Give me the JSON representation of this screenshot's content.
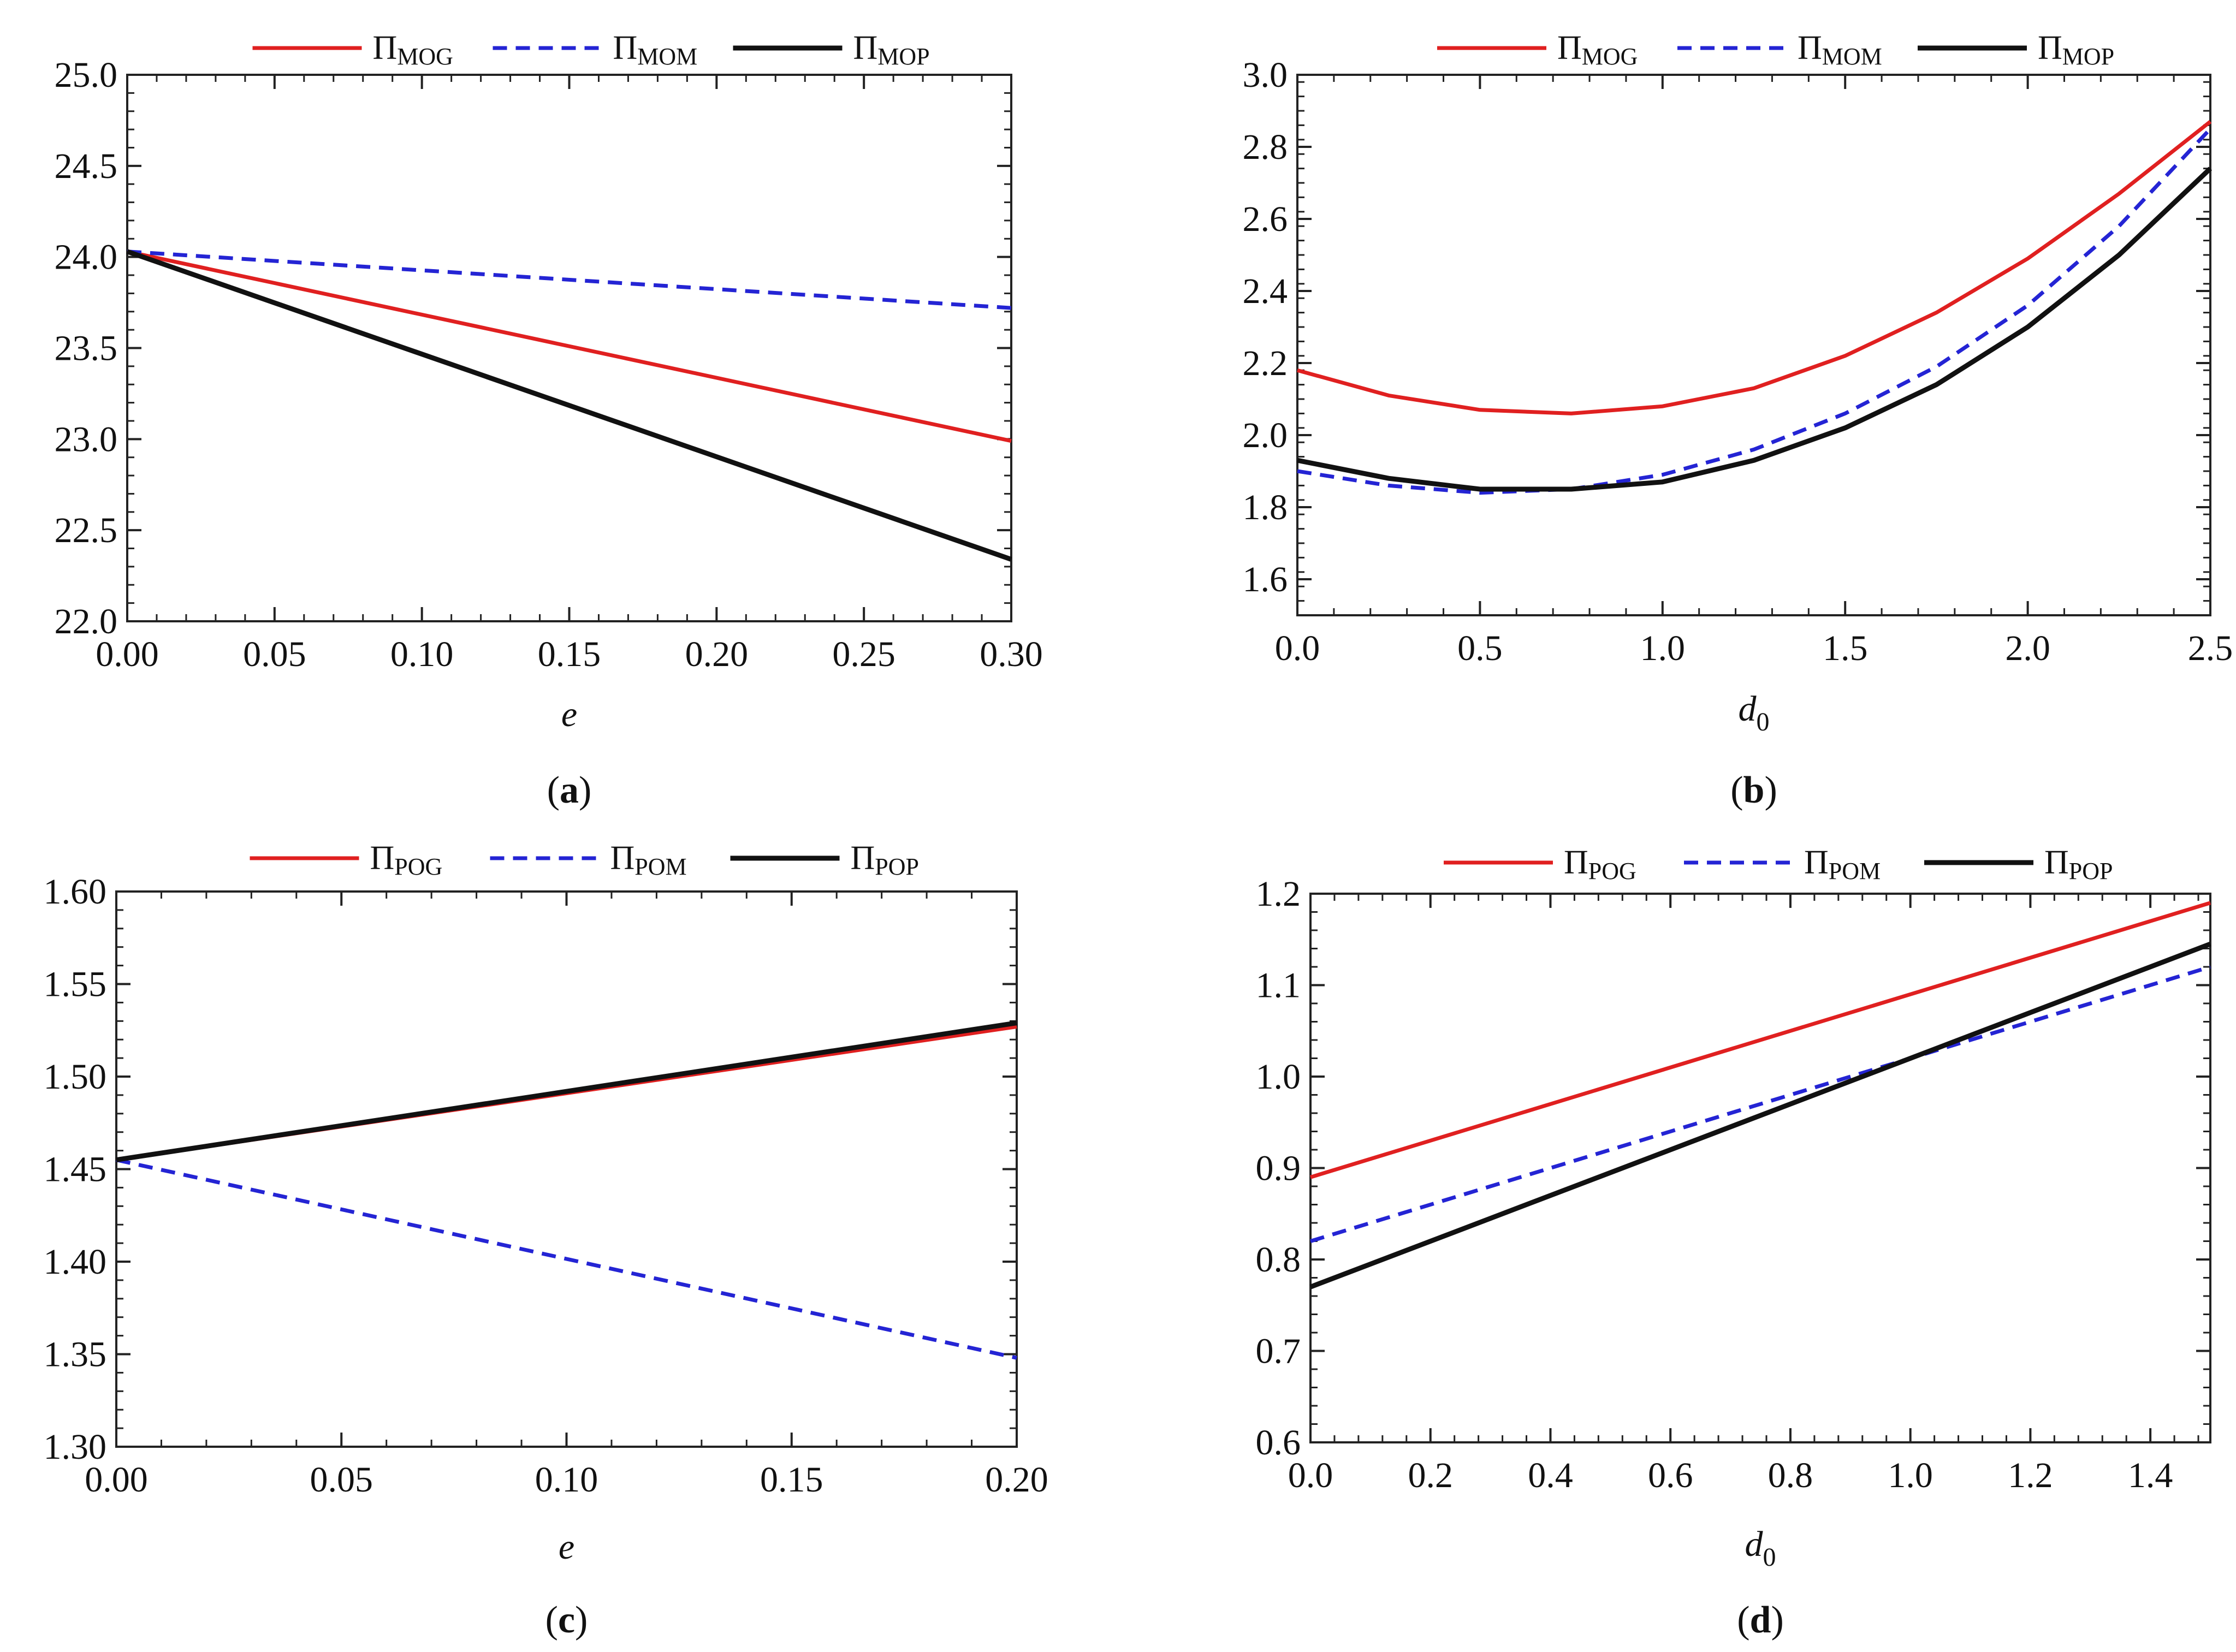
{
  "chart_data": [
    {
      "type": "line",
      "caption": "a",
      "xlabel": "e",
      "xlabel_sub": "",
      "ylabel": "",
      "xlim": [
        0,
        0.3
      ],
      "ylim": [
        22.0,
        25.0
      ],
      "xticks": [
        0,
        0.05,
        0.1,
        0.15,
        0.2,
        0.25,
        0.3
      ],
      "xtick_labels": [
        "0.00",
        "0.05",
        "0.10",
        "0.15",
        "0.20",
        "0.25",
        "0.30"
      ],
      "yticks": [
        22.0,
        22.5,
        23.0,
        23.5,
        24.0,
        24.5,
        25.0
      ],
      "ytick_labels": [
        "22.0",
        "22.5",
        "23.0",
        "23.5",
        "24.0",
        "24.5",
        "25.0"
      ],
      "series": [
        {
          "name": "Π",
          "sub": "MOG",
          "color": "#e02020",
          "dash": "solid",
          "x": [
            0,
            0.3
          ],
          "y": [
            24.03,
            22.99
          ]
        },
        {
          "name": "Π",
          "sub": "MOM",
          "color": "#2424d4",
          "dash": "dashed",
          "x": [
            0,
            0.3
          ],
          "y": [
            24.03,
            23.72
          ]
        },
        {
          "name": "Π",
          "sub": "MOP",
          "color": "#111111",
          "dash": "solid",
          "x": [
            0,
            0.3
          ],
          "y": [
            24.03,
            22.34
          ]
        }
      ]
    },
    {
      "type": "line",
      "caption": "b",
      "xlabel": "d",
      "xlabel_sub": "0",
      "ylabel": "",
      "xlim": [
        0,
        2.5
      ],
      "ylim": [
        1.5,
        3.0
      ],
      "xticks": [
        0,
        0.5,
        1.0,
        1.5,
        2.0,
        2.5
      ],
      "xtick_labels": [
        "0.0",
        "0.5",
        "1.0",
        "1.5",
        "2.0",
        "2.5"
      ],
      "yticks": [
        1.6,
        1.8,
        2.0,
        2.2,
        2.4,
        2.6,
        2.8,
        3.0
      ],
      "ytick_labels": [
        "1.6",
        "1.8",
        "2.0",
        "2.2",
        "2.4",
        "2.6",
        "2.8",
        "3.0"
      ],
      "series": [
        {
          "name": "Π",
          "sub": "MOG",
          "color": "#e02020",
          "dash": "solid",
          "x": [
            0,
            0.25,
            0.5,
            0.75,
            1.0,
            1.25,
            1.5,
            1.75,
            2.0,
            2.25,
            2.5
          ],
          "y": [
            2.18,
            2.11,
            2.07,
            2.06,
            2.08,
            2.13,
            2.22,
            2.34,
            2.49,
            2.67,
            2.87
          ]
        },
        {
          "name": "Π",
          "sub": "MOM",
          "color": "#2424d4",
          "dash": "dashed",
          "x": [
            0,
            0.25,
            0.5,
            0.75,
            1.0,
            1.25,
            1.5,
            1.75,
            2.0,
            2.25,
            2.5
          ],
          "y": [
            1.9,
            1.86,
            1.84,
            1.85,
            1.89,
            1.96,
            2.06,
            2.19,
            2.36,
            2.58,
            2.85
          ]
        },
        {
          "name": "Π",
          "sub": "MOP",
          "color": "#111111",
          "dash": "solid",
          "x": [
            0,
            0.25,
            0.5,
            0.75,
            1.0,
            1.25,
            1.5,
            1.75,
            2.0,
            2.25,
            2.5
          ],
          "y": [
            1.93,
            1.88,
            1.85,
            1.85,
            1.87,
            1.93,
            2.02,
            2.14,
            2.3,
            2.5,
            2.74
          ]
        }
      ]
    },
    {
      "type": "line",
      "caption": "c",
      "xlabel": "e",
      "xlabel_sub": "",
      "ylabel": "",
      "xlim": [
        0,
        0.2
      ],
      "ylim": [
        1.3,
        1.6
      ],
      "xticks": [
        0,
        0.05,
        0.1,
        0.15,
        0.2
      ],
      "xtick_labels": [
        "0.00",
        "0.05",
        "0.10",
        "0.15",
        "0.20"
      ],
      "yticks": [
        1.3,
        1.35,
        1.4,
        1.45,
        1.5,
        1.55,
        1.6
      ],
      "ytick_labels": [
        "1.30",
        "1.35",
        "1.40",
        "1.45",
        "1.50",
        "1.55",
        "1.60"
      ],
      "series": [
        {
          "name": "Π",
          "sub": "POG",
          "color": "#e02020",
          "dash": "solid",
          "x": [
            0,
            0.2
          ],
          "y": [
            1.455,
            1.527
          ]
        },
        {
          "name": "Π",
          "sub": "POM",
          "color": "#2424d4",
          "dash": "dashed",
          "x": [
            0,
            0.2
          ],
          "y": [
            1.455,
            1.348
          ]
        },
        {
          "name": "Π",
          "sub": "POP",
          "color": "#111111",
          "dash": "solid",
          "x": [
            0,
            0.2
          ],
          "y": [
            1.455,
            1.529
          ]
        }
      ]
    },
    {
      "type": "line",
      "caption": "d",
      "xlabel": "d",
      "xlabel_sub": "0",
      "ylabel": "",
      "xlim": [
        0,
        1.5
      ],
      "ylim": [
        0.6,
        1.2
      ],
      "xticks": [
        0,
        0.2,
        0.4,
        0.6,
        0.8,
        1.0,
        1.2,
        1.4
      ],
      "xtick_labels": [
        "0.0",
        "0.2",
        "0.4",
        "0.6",
        "0.8",
        "1.0",
        "1.2",
        "1.4"
      ],
      "yticks": [
        0.6,
        0.7,
        0.8,
        0.9,
        1.0,
        1.1,
        1.2
      ],
      "ytick_labels": [
        "0.6",
        "0.7",
        "0.8",
        "0.9",
        "1.0",
        "1.1",
        "1.2"
      ],
      "series": [
        {
          "name": "Π",
          "sub": "POG",
          "color": "#e02020",
          "dash": "solid",
          "x": [
            0,
            1.5
          ],
          "y": [
            0.89,
            1.19
          ]
        },
        {
          "name": "Π",
          "sub": "POM",
          "color": "#2424d4",
          "dash": "dashed",
          "x": [
            0,
            1.5
          ],
          "y": [
            0.82,
            1.12
          ]
        },
        {
          "name": "Π",
          "sub": "POP",
          "color": "#111111",
          "dash": "solid",
          "x": [
            0,
            1.5
          ],
          "y": [
            0.77,
            1.145
          ]
        }
      ]
    }
  ]
}
